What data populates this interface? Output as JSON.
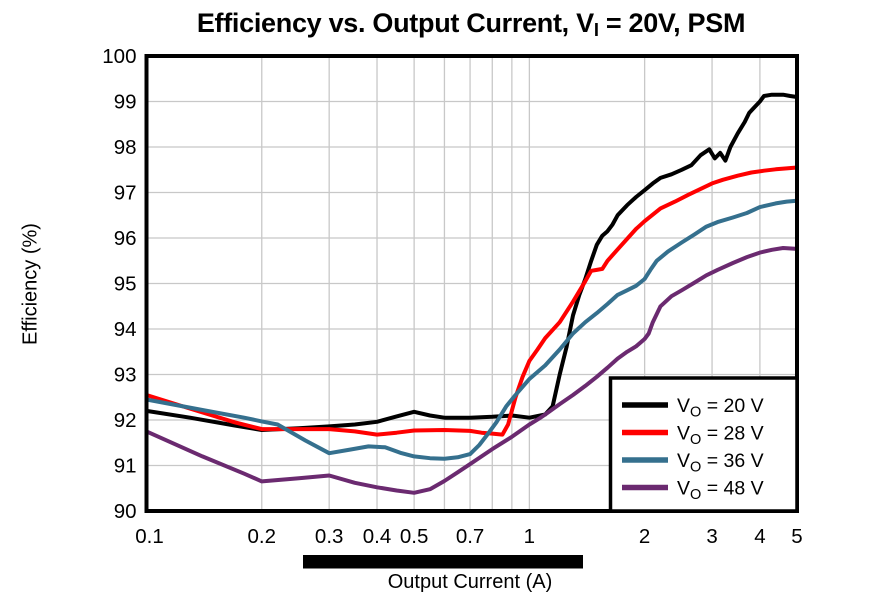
{
  "title": {
    "pre": "Efficiency vs. Output Current, V",
    "sub": "I",
    "post": " = 20V, PSM"
  },
  "colors": {
    "background": "#ffffff",
    "grid": "#c8c8c8",
    "frame": "#000000",
    "redaction_bar": "#000000",
    "series_20v": "#000000",
    "series_28v": "#ff0000",
    "series_36v": "#35708e",
    "series_48v": "#6b2a70"
  },
  "redaction_bar": {
    "present": true
  },
  "chart_data": {
    "type": "line",
    "x_scale": "log",
    "xlabel": "Output Current (A)",
    "ylabel": "Efficiency (%)",
    "xlim": [
      0.1,
      5
    ],
    "ylim": [
      90,
      100
    ],
    "grid": "on",
    "legend_position": "bottom-right",
    "x_ticks": [
      {
        "v": 0.1,
        "label": "0.1"
      },
      {
        "v": 0.2,
        "label": "0.2"
      },
      {
        "v": 0.3,
        "label": "0.3"
      },
      {
        "v": 0.4,
        "label": "0.4"
      },
      {
        "v": 0.5,
        "label": "0.5"
      },
      {
        "v": 0.7,
        "label": "0.7"
      },
      {
        "v": 1,
        "label": "1"
      },
      {
        "v": 2,
        "label": "2"
      },
      {
        "v": 3,
        "label": "3"
      },
      {
        "v": 4,
        "label": "4"
      },
      {
        "v": 5,
        "label": "5"
      }
    ],
    "x_gridlines": [
      0.2,
      0.3,
      0.4,
      0.5,
      0.6,
      0.7,
      0.8,
      0.9,
      1,
      2,
      3,
      4
    ],
    "y_ticks": [
      {
        "v": 100,
        "label": "100"
      },
      {
        "v": 99,
        "label": "99"
      },
      {
        "v": 98,
        "label": "98"
      },
      {
        "v": 97,
        "label": "97"
      },
      {
        "v": 96,
        "label": "96"
      },
      {
        "v": 95,
        "label": "95"
      },
      {
        "v": 94,
        "label": "94"
      },
      {
        "v": 93,
        "label": "93"
      },
      {
        "v": 92,
        "label": "92"
      },
      {
        "v": 91,
        "label": "91"
      },
      {
        "v": 90,
        "label": "90"
      }
    ],
    "y_gridlines": [
      91,
      92,
      93,
      94,
      95,
      96,
      97,
      98,
      99
    ],
    "series": [
      {
        "name": "VO = 20 V",
        "label": {
          "pre": "V",
          "sub": "O",
          "post": " = 20 V"
        },
        "color": "#000000",
        "points": [
          [
            0.1,
            92.2
          ],
          [
            0.13,
            92.05
          ],
          [
            0.17,
            91.88
          ],
          [
            0.2,
            91.78
          ],
          [
            0.25,
            91.82
          ],
          [
            0.3,
            91.86
          ],
          [
            0.35,
            91.9
          ],
          [
            0.4,
            91.96
          ],
          [
            0.45,
            92.08
          ],
          [
            0.5,
            92.18
          ],
          [
            0.55,
            92.1
          ],
          [
            0.6,
            92.05
          ],
          [
            0.7,
            92.05
          ],
          [
            0.8,
            92.07
          ],
          [
            0.9,
            92.1
          ],
          [
            1.0,
            92.05
          ],
          [
            1.1,
            92.12
          ],
          [
            1.15,
            92.3
          ],
          [
            1.2,
            93.0
          ],
          [
            1.25,
            93.6
          ],
          [
            1.3,
            94.3
          ],
          [
            1.35,
            94.75
          ],
          [
            1.4,
            95.1
          ],
          [
            1.45,
            95.5
          ],
          [
            1.5,
            95.85
          ],
          [
            1.55,
            96.05
          ],
          [
            1.6,
            96.15
          ],
          [
            1.65,
            96.3
          ],
          [
            1.7,
            96.5
          ],
          [
            1.8,
            96.72
          ],
          [
            1.9,
            96.9
          ],
          [
            2.0,
            97.05
          ],
          [
            2.1,
            97.2
          ],
          [
            2.2,
            97.32
          ],
          [
            2.35,
            97.4
          ],
          [
            2.5,
            97.5
          ],
          [
            2.65,
            97.6
          ],
          [
            2.8,
            97.82
          ],
          [
            2.95,
            97.95
          ],
          [
            3.05,
            97.75
          ],
          [
            3.15,
            97.87
          ],
          [
            3.25,
            97.7
          ],
          [
            3.35,
            98.0
          ],
          [
            3.5,
            98.3
          ],
          [
            3.65,
            98.55
          ],
          [
            3.75,
            98.75
          ],
          [
            3.85,
            98.85
          ],
          [
            4.0,
            99.0
          ],
          [
            4.1,
            99.12
          ],
          [
            4.3,
            99.15
          ],
          [
            4.6,
            99.15
          ],
          [
            4.8,
            99.12
          ],
          [
            5.0,
            99.1
          ]
        ]
      },
      {
        "name": "VO = 28 V",
        "label": {
          "pre": "V",
          "sub": "O",
          "post": " = 28 V"
        },
        "color": "#ff0000",
        "points": [
          [
            0.1,
            92.55
          ],
          [
            0.13,
            92.25
          ],
          [
            0.17,
            91.95
          ],
          [
            0.2,
            91.8
          ],
          [
            0.3,
            91.8
          ],
          [
            0.35,
            91.75
          ],
          [
            0.4,
            91.68
          ],
          [
            0.45,
            91.72
          ],
          [
            0.5,
            91.77
          ],
          [
            0.6,
            91.78
          ],
          [
            0.7,
            91.76
          ],
          [
            0.75,
            91.72
          ],
          [
            0.8,
            91.7
          ],
          [
            0.85,
            91.68
          ],
          [
            0.88,
            91.9
          ],
          [
            0.92,
            92.5
          ],
          [
            0.96,
            92.95
          ],
          [
            1.0,
            93.3
          ],
          [
            1.05,
            93.55
          ],
          [
            1.1,
            93.8
          ],
          [
            1.2,
            94.15
          ],
          [
            1.3,
            94.6
          ],
          [
            1.4,
            95.05
          ],
          [
            1.45,
            95.28
          ],
          [
            1.5,
            95.3
          ],
          [
            1.55,
            95.32
          ],
          [
            1.6,
            95.5
          ],
          [
            1.7,
            95.75
          ],
          [
            1.8,
            95.98
          ],
          [
            1.9,
            96.2
          ],
          [
            2.0,
            96.37
          ],
          [
            2.2,
            96.65
          ],
          [
            2.4,
            96.8
          ],
          [
            2.6,
            96.95
          ],
          [
            2.8,
            97.08
          ],
          [
            3.0,
            97.2
          ],
          [
            3.2,
            97.28
          ],
          [
            3.5,
            97.37
          ],
          [
            3.8,
            97.44
          ],
          [
            4.1,
            97.48
          ],
          [
            4.4,
            97.51
          ],
          [
            4.7,
            97.53
          ],
          [
            5.0,
            97.55
          ]
        ]
      },
      {
        "name": "VO = 36 V",
        "label": {
          "pre": "V",
          "sub": "O",
          "post": " = 36 V"
        },
        "color": "#35708e",
        "points": [
          [
            0.1,
            92.45
          ],
          [
            0.14,
            92.22
          ],
          [
            0.18,
            92.05
          ],
          [
            0.2,
            91.97
          ],
          [
            0.22,
            91.9
          ],
          [
            0.26,
            91.55
          ],
          [
            0.3,
            91.27
          ],
          [
            0.34,
            91.35
          ],
          [
            0.38,
            91.42
          ],
          [
            0.42,
            91.4
          ],
          [
            0.46,
            91.28
          ],
          [
            0.5,
            91.2
          ],
          [
            0.55,
            91.16
          ],
          [
            0.6,
            91.15
          ],
          [
            0.65,
            91.18
          ],
          [
            0.7,
            91.25
          ],
          [
            0.74,
            91.45
          ],
          [
            0.78,
            91.7
          ],
          [
            0.82,
            91.95
          ],
          [
            0.87,
            92.3
          ],
          [
            0.92,
            92.55
          ],
          [
            1.0,
            92.9
          ],
          [
            1.1,
            93.2
          ],
          [
            1.2,
            93.55
          ],
          [
            1.3,
            93.9
          ],
          [
            1.4,
            94.15
          ],
          [
            1.5,
            94.35
          ],
          [
            1.6,
            94.55
          ],
          [
            1.7,
            94.75
          ],
          [
            1.8,
            94.85
          ],
          [
            1.9,
            94.95
          ],
          [
            2.0,
            95.1
          ],
          [
            2.07,
            95.3
          ],
          [
            2.15,
            95.5
          ],
          [
            2.3,
            95.7
          ],
          [
            2.5,
            95.9
          ],
          [
            2.7,
            96.08
          ],
          [
            2.9,
            96.25
          ],
          [
            3.1,
            96.35
          ],
          [
            3.4,
            96.45
          ],
          [
            3.7,
            96.55
          ],
          [
            4.0,
            96.68
          ],
          [
            4.4,
            96.76
          ],
          [
            4.7,
            96.8
          ],
          [
            5.0,
            96.82
          ]
        ]
      },
      {
        "name": "VO = 48 V",
        "label": {
          "pre": "V",
          "sub": "O",
          "post": " = 48 V"
        },
        "color": "#6b2a70",
        "points": [
          [
            0.1,
            91.75
          ],
          [
            0.14,
            91.2
          ],
          [
            0.18,
            90.82
          ],
          [
            0.2,
            90.65
          ],
          [
            0.25,
            90.72
          ],
          [
            0.3,
            90.78
          ],
          [
            0.35,
            90.62
          ],
          [
            0.4,
            90.52
          ],
          [
            0.45,
            90.45
          ],
          [
            0.5,
            90.4
          ],
          [
            0.55,
            90.48
          ],
          [
            0.6,
            90.66
          ],
          [
            0.65,
            90.85
          ],
          [
            0.7,
            91.03
          ],
          [
            0.8,
            91.36
          ],
          [
            0.9,
            91.63
          ],
          [
            1.0,
            91.9
          ],
          [
            1.06,
            92.03
          ],
          [
            1.1,
            92.12
          ],
          [
            1.2,
            92.35
          ],
          [
            1.3,
            92.55
          ],
          [
            1.4,
            92.75
          ],
          [
            1.5,
            92.95
          ],
          [
            1.6,
            93.15
          ],
          [
            1.7,
            93.35
          ],
          [
            1.8,
            93.5
          ],
          [
            1.9,
            93.62
          ],
          [
            2.0,
            93.78
          ],
          [
            2.05,
            93.9
          ],
          [
            2.1,
            94.15
          ],
          [
            2.2,
            94.5
          ],
          [
            2.35,
            94.72
          ],
          [
            2.5,
            94.85
          ],
          [
            2.7,
            95.02
          ],
          [
            2.9,
            95.18
          ],
          [
            3.1,
            95.3
          ],
          [
            3.4,
            95.45
          ],
          [
            3.7,
            95.58
          ],
          [
            4.0,
            95.68
          ],
          [
            4.3,
            95.74
          ],
          [
            4.6,
            95.78
          ],
          [
            5.0,
            95.76
          ]
        ]
      }
    ]
  }
}
